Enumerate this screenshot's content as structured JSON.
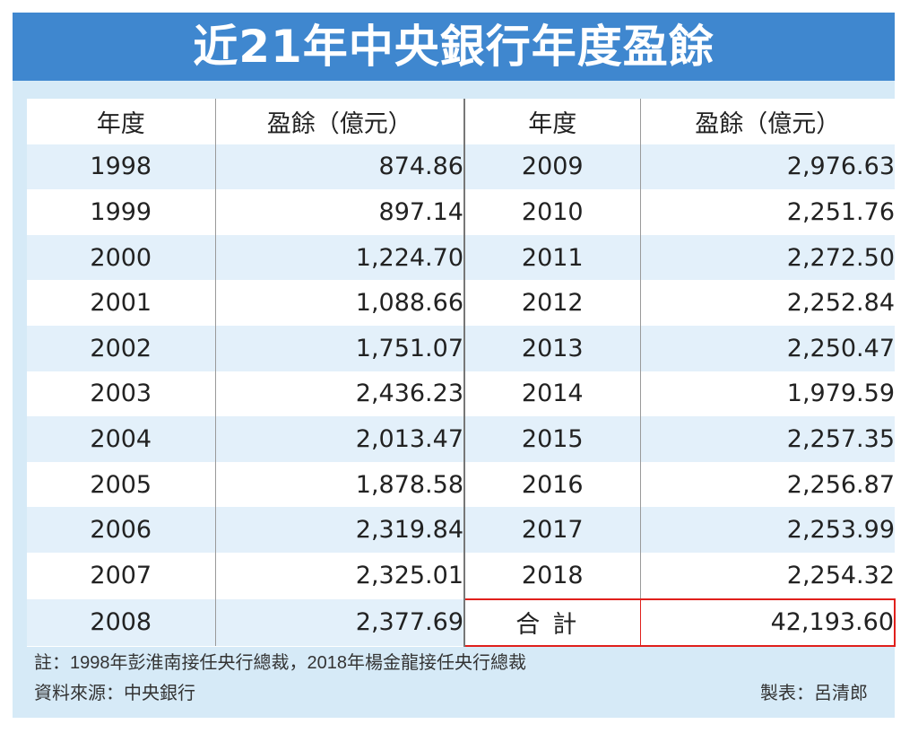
{
  "title": "近21年中央銀行年度盈餘",
  "headers": {
    "year": "年度",
    "surplus": "盈餘（億元）"
  },
  "left_rows": [
    {
      "year": "1998",
      "value": "874.86"
    },
    {
      "year": "1999",
      "value": "897.14"
    },
    {
      "year": "2000",
      "value": "1,224.70"
    },
    {
      "year": "2001",
      "value": "1,088.66"
    },
    {
      "year": "2002",
      "value": "1,751.07"
    },
    {
      "year": "2003",
      "value": "2,436.23"
    },
    {
      "year": "2004",
      "value": "2,013.47"
    },
    {
      "year": "2005",
      "value": "1,878.58"
    },
    {
      "year": "2006",
      "value": "2,319.84"
    },
    {
      "year": "2007",
      "value": "2,325.01"
    },
    {
      "year": "2008",
      "value": "2,377.69"
    }
  ],
  "right_rows": [
    {
      "year": "2009",
      "value": "2,976.63"
    },
    {
      "year": "2010",
      "value": "2,251.76"
    },
    {
      "year": "2011",
      "value": "2,272.50"
    },
    {
      "year": "2012",
      "value": "2,252.84"
    },
    {
      "year": "2013",
      "value": "2,250.47"
    },
    {
      "year": "2014",
      "value": "1,979.59"
    },
    {
      "year": "2015",
      "value": "2,257.35"
    },
    {
      "year": "2016",
      "value": "2,256.87"
    },
    {
      "year": "2017",
      "value": "2,253.99"
    },
    {
      "year": "2018",
      "value": "2,254.32"
    }
  ],
  "total": {
    "label": "合計",
    "value": "42,193.60"
  },
  "note": "註：1998年彭淮南接任央行總裁，2018年楊金龍接任央行總裁",
  "source": "資料來源：中央銀行",
  "credit": "製表：呂清郎",
  "colors": {
    "title_bg": "#3f87cf",
    "panel_bg": "#d6eaf7",
    "stripe": "#e3f0fa",
    "total_red": "#e0201c"
  }
}
